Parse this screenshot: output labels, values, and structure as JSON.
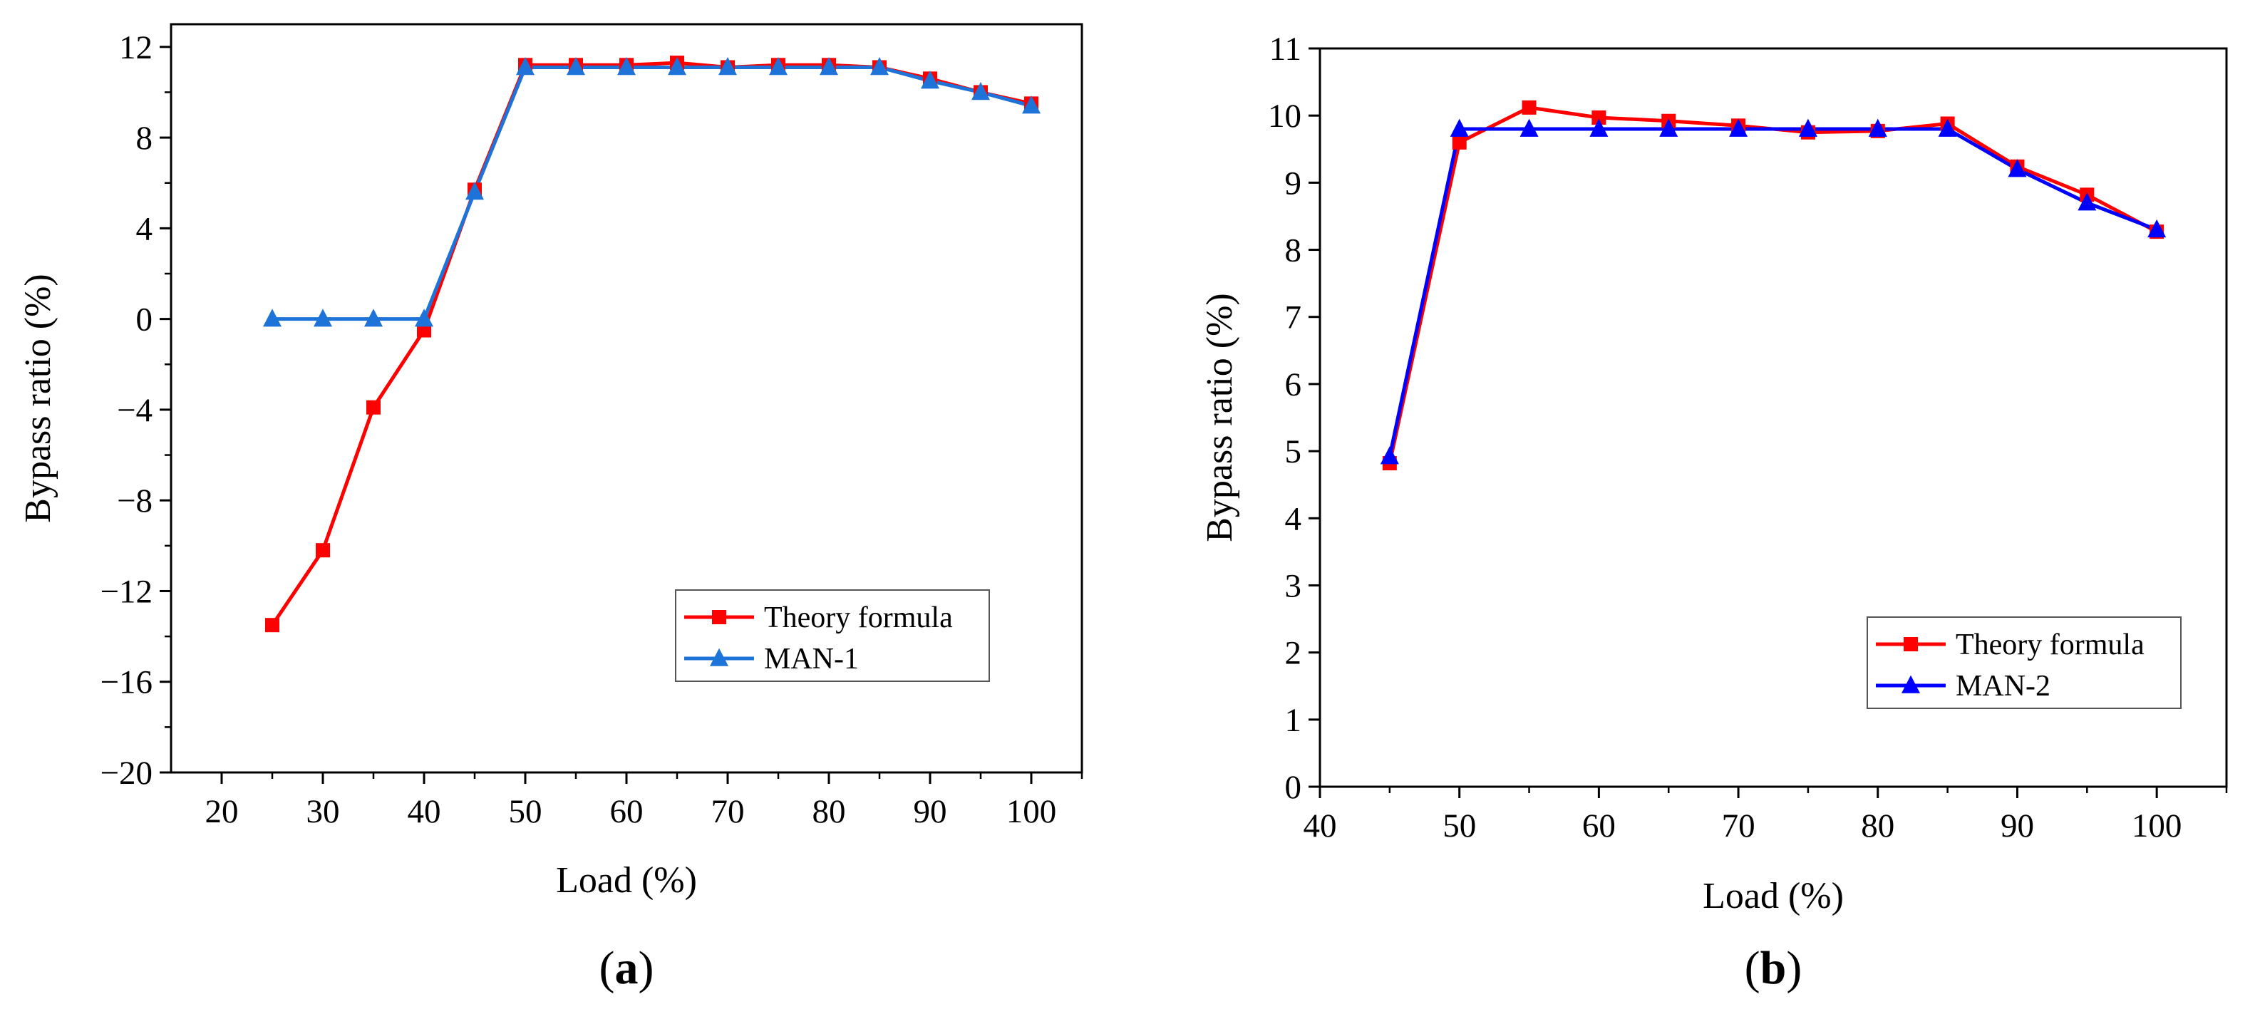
{
  "chart_data": [
    {
      "type": "line",
      "panel_label": "a",
      "xlabel": "Load (%)",
      "ylabel": "Bypass ratio (%)",
      "xlim": [
        15,
        105
      ],
      "ylim": [
        -20,
        13
      ],
      "xticks": [
        20,
        30,
        40,
        50,
        60,
        70,
        80,
        90,
        100
      ],
      "yticks": [
        -20,
        -16,
        -12,
        -8,
        -4,
        0,
        4,
        8,
        12
      ],
      "xtick_labels": [
        "20",
        "30",
        "40",
        "50",
        "60",
        "70",
        "80",
        "90",
        "100"
      ],
      "ytick_labels": [
        "−20",
        "−16",
        "−12",
        "−8",
        "−4",
        "0",
        "4",
        "8",
        "12"
      ],
      "grid": false,
      "legend_position": "lower-right",
      "series": [
        {
          "name": "Theory formula",
          "color": "#ff0000",
          "marker": "square",
          "x": [
            25,
            30,
            35,
            40,
            45,
            50,
            55,
            60,
            65,
            70,
            75,
            80,
            85,
            90,
            95,
            100
          ],
          "y": [
            -13.5,
            -10.2,
            -3.9,
            -0.5,
            5.7,
            11.2,
            11.2,
            11.2,
            11.3,
            11.1,
            11.2,
            11.2,
            11.1,
            10.6,
            10.0,
            9.5
          ]
        },
        {
          "name": "MAN-1",
          "color": "#1e73d8",
          "marker": "triangle",
          "x": [
            25,
            30,
            35,
            40,
            45,
            50,
            55,
            60,
            65,
            70,
            75,
            80,
            85,
            90,
            95,
            100
          ],
          "y": [
            0,
            0,
            0,
            0,
            5.6,
            11.1,
            11.1,
            11.1,
            11.1,
            11.1,
            11.1,
            11.1,
            11.1,
            10.5,
            10.0,
            9.4
          ]
        }
      ]
    },
    {
      "type": "line",
      "panel_label": "b",
      "xlabel": "Load (%)",
      "ylabel": "Bypass ratio (%)",
      "xlim": [
        40,
        105
      ],
      "ylim": [
        0,
        11
      ],
      "xticks": [
        40,
        50,
        60,
        70,
        80,
        90,
        100
      ],
      "yticks": [
        0,
        1,
        2,
        3,
        4,
        5,
        6,
        7,
        8,
        9,
        10,
        11
      ],
      "xtick_labels": [
        "40",
        "50",
        "60",
        "70",
        "80",
        "90",
        "100"
      ],
      "ytick_labels": [
        "0",
        "1",
        "2",
        "3",
        "4",
        "5",
        "6",
        "7",
        "8",
        "9",
        "10",
        "11"
      ],
      "grid": false,
      "legend_position": "lower-right",
      "series": [
        {
          "name": "Theory formula",
          "color": "#ff0000",
          "marker": "square",
          "x": [
            45,
            50,
            55,
            60,
            65,
            70,
            75,
            80,
            85,
            90,
            95,
            100
          ],
          "y": [
            4.82,
            9.6,
            10.12,
            9.97,
            9.92,
            9.85,
            9.75,
            9.77,
            9.88,
            9.24,
            8.82,
            8.27
          ]
        },
        {
          "name": "MAN-2",
          "color": "#0000ff",
          "marker": "triangle",
          "x": [
            45,
            50,
            55,
            60,
            65,
            70,
            75,
            80,
            85,
            90,
            95,
            100
          ],
          "y": [
            4.92,
            9.8,
            9.8,
            9.8,
            9.8,
            9.8,
            9.8,
            9.8,
            9.8,
            9.2,
            8.7,
            8.3
          ]
        }
      ]
    }
  ]
}
